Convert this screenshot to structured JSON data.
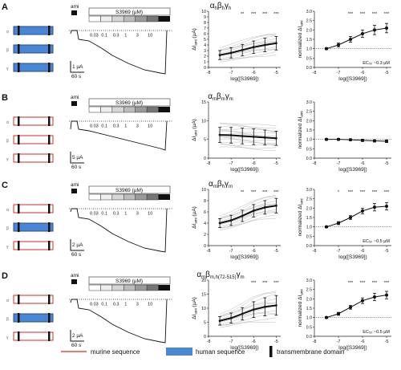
{
  "panels": [
    {
      "letter": "A",
      "title_main": "α",
      "title_sub1": "h",
      "title_b": "β",
      "title_sub2": "h",
      "title_g": "γ",
      "title_sub3": "h",
      "subunits": [
        "α",
        "β",
        "γ"
      ],
      "fills": [
        "human",
        "human",
        "human"
      ],
      "trace": {
        "ami": "ami",
        "drug": "S3969 (µM)",
        "concs": [
          "0.03",
          "0.1",
          "0.3",
          "1",
          "3",
          "10"
        ],
        "scale_current": "1 µA",
        "scale_time": "60 s"
      },
      "stars_mid": [
        "**",
        "***",
        "***",
        "***"
      ],
      "stars_right": [
        "***",
        "***",
        "***",
        "***"
      ],
      "ec50": "EC₅₀ ~0.3 µM"
    },
    {
      "letter": "B",
      "title_main": "α",
      "title_sub1": "m",
      "title_b": "β",
      "title_sub2": "m",
      "title_g": "γ",
      "title_sub3": "m",
      "subunits": [
        "α",
        "β",
        "γ"
      ],
      "fills": [
        "murine",
        "murine",
        "murine"
      ],
      "trace": {
        "ami": "ami",
        "drug": "S3969 (µM)",
        "concs": [
          "0.03",
          "0.1",
          "0.3",
          "1",
          "3",
          "10"
        ],
        "scale_current": "5 µA",
        "scale_time": "60 s"
      },
      "stars_mid": [],
      "stars_right": [],
      "ec50": ""
    },
    {
      "letter": "C",
      "title_main": "α",
      "title_sub1": "m",
      "title_b": "β",
      "title_sub2": "h",
      "title_g": "γ",
      "title_sub3": "m",
      "subunits": [
        "α",
        "β",
        "γ"
      ],
      "fills": [
        "murine",
        "human",
        "murine"
      ],
      "trace": {
        "ami": "ami",
        "drug": "S3969 (µM)",
        "concs": [
          "0.03",
          "0.1",
          "0.3",
          "1",
          "3",
          "10"
        ],
        "scale_current": "2 µA",
        "scale_time": "60 s"
      },
      "stars_mid": [
        "**",
        "***",
        "***",
        "***"
      ],
      "stars_right": [
        "*",
        "***",
        "***",
        "***",
        "***"
      ],
      "ec50": "EC₅₀ ~0.5 µM"
    },
    {
      "letter": "D",
      "title_main": "α",
      "title_sub1": "m",
      "title_b": "β",
      "title_sub2": "m,h(72-515)",
      "title_g": "γ",
      "title_sub3": "m",
      "subunits": [
        "α",
        "β",
        "γ"
      ],
      "fills": [
        "murine",
        "human",
        "murine"
      ],
      "trace": {
        "ami": "ami",
        "drug": "S3969 (µM)",
        "concs": [
          "0.03",
          "0.1",
          "0.3",
          "1",
          "3",
          "10"
        ],
        "scale_current": "2 µA",
        "scale_time": "60 s"
      },
      "stars_mid": [
        "***",
        "***",
        "***"
      ],
      "stars_right": [
        "***",
        "***",
        "***",
        "***"
      ],
      "ec50": "EC₅₀ ~0.5 µM"
    }
  ],
  "labels": {
    "mid_ylabel": "ΔI",
    "mid_ylabel_sub": "ami",
    "mid_ylabel_unit": " (µA)",
    "right_ylabel": "normalized ΔI",
    "right_ylabel_sub": "ami",
    "xlabel": "log([S3969])"
  },
  "legend": {
    "murine": "murine sequence",
    "human": "human sequence",
    "tm": "transmembrane domain"
  },
  "colors": {
    "murine": "#d42a2a",
    "human": "#4a86d6",
    "black": "#111111",
    "individual": "#bbbbbb"
  },
  "chart_data": [
    {
      "panel": "A",
      "type": "line",
      "kind": "absolute",
      "xlabel": "log([S3969])",
      "ylabel": "ΔIami (µA)",
      "x": [
        -7.5,
        -7,
        -6.5,
        -6,
        -5.5,
        -5
      ],
      "values": [
        2.2,
        2.6,
        3.1,
        3.6,
        4.0,
        4.3
      ],
      "err": [
        0.8,
        0.9,
        1.0,
        1.1,
        1.2,
        1.2
      ],
      "ylim": [
        0,
        10
      ],
      "yticks": [
        0,
        1,
        2,
        3,
        4,
        5,
        6,
        7,
        8,
        9,
        10
      ],
      "xlim": [
        -8,
        -4.8
      ],
      "xticks": [
        -8,
        -7,
        -6,
        -5
      ]
    },
    {
      "panel": "A",
      "type": "line",
      "kind": "normalized",
      "xlabel": "log([S3969])",
      "ylabel": "normalized ΔIami",
      "x": [
        -7.5,
        -7,
        -6.5,
        -6,
        -5.5,
        -5
      ],
      "values": [
        1.0,
        1.2,
        1.5,
        1.8,
        2.0,
        2.1
      ],
      "err": [
        0.05,
        0.1,
        0.15,
        0.2,
        0.25,
        0.25
      ],
      "ylim": [
        0,
        3
      ],
      "yticks": [
        0,
        0.5,
        1,
        1.5,
        2,
        2.5,
        3
      ],
      "xlim": [
        -8,
        -4.8
      ],
      "xticks": [
        -8,
        -7,
        -6,
        -5
      ],
      "reference": 1
    },
    {
      "panel": "B",
      "type": "line",
      "kind": "absolute",
      "xlabel": "log([S3969])",
      "ylabel": "ΔIami (µA)",
      "x": [
        -7.5,
        -7,
        -6.5,
        -6,
        -5.5,
        -5
      ],
      "values": [
        6.2,
        6.1,
        5.9,
        5.7,
        5.5,
        5.3
      ],
      "err": [
        2.0,
        2.1,
        2.1,
        2.1,
        2.0,
        1.9
      ],
      "ylim": [
        0,
        15
      ],
      "yticks": [
        0,
        5,
        10,
        15
      ],
      "xlim": [
        -8,
        -4.8
      ],
      "xticks": [
        -8,
        -7,
        -6,
        -5
      ]
    },
    {
      "panel": "B",
      "type": "line",
      "kind": "normalized",
      "xlabel": "log([S3969])",
      "ylabel": "normalized ΔIami",
      "x": [
        -7.5,
        -7,
        -6.5,
        -6,
        -5.5,
        -5
      ],
      "values": [
        1.0,
        1.0,
        0.98,
        0.95,
        0.92,
        0.9
      ],
      "err": [
        0.05,
        0.05,
        0.05,
        0.06,
        0.06,
        0.07
      ],
      "ylim": [
        0,
        3
      ],
      "yticks": [
        0,
        0.5,
        1,
        1.5,
        2,
        2.5,
        3
      ],
      "xlim": [
        -8,
        -4.8
      ],
      "xticks": [
        -8,
        -7,
        -6,
        -5
      ],
      "reference": 1
    },
    {
      "panel": "C",
      "type": "line",
      "kind": "absolute",
      "xlabel": "log([S3969])",
      "ylabel": "ΔIami (µA)",
      "x": [
        -7.5,
        -7,
        -6.5,
        -6,
        -5.5,
        -5
      ],
      "values": [
        4.0,
        4.5,
        5.3,
        6.2,
        6.8,
        7.1
      ],
      "err": [
        0.8,
        0.9,
        1.0,
        1.1,
        1.2,
        1.3
      ],
      "ylim": [
        0,
        10
      ],
      "yticks": [
        0,
        2,
        4,
        6,
        8,
        10
      ],
      "xlim": [
        -8,
        -4.8
      ],
      "xticks": [
        -8,
        -7,
        -6,
        -5
      ]
    },
    {
      "panel": "C",
      "type": "line",
      "kind": "normalized",
      "xlabel": "log([S3969])",
      "ylabel": "normalized ΔIami",
      "x": [
        -7.5,
        -7,
        -6.5,
        -6,
        -5.5,
        -5
      ],
      "values": [
        1.0,
        1.2,
        1.5,
        1.85,
        2.05,
        2.1
      ],
      "err": [
        0.05,
        0.08,
        0.1,
        0.15,
        0.2,
        0.2
      ],
      "ylim": [
        0,
        3
      ],
      "yticks": [
        0,
        0.5,
        1,
        1.5,
        2,
        2.5,
        3
      ],
      "xlim": [
        -8,
        -4.8
      ],
      "xticks": [
        -8,
        -7,
        -6,
        -5
      ],
      "reference": 1
    },
    {
      "panel": "D",
      "type": "line",
      "kind": "absolute",
      "xlabel": "log([S3969])",
      "ylabel": "ΔIami (µA)",
      "x": [
        -7.5,
        -7,
        -6.5,
        -6,
        -5.5,
        -5
      ],
      "values": [
        5.5,
        6.5,
        8.0,
        9.5,
        10.5,
        11.0
      ],
      "err": [
        1.5,
        1.8,
        2.2,
        2.8,
        3.2,
        3.5
      ],
      "ylim": [
        0,
        20
      ],
      "yticks": [
        0,
        5,
        10,
        15,
        20
      ],
      "xlim": [
        -8,
        -4.8
      ],
      "xticks": [
        -8,
        -7,
        -6,
        -5
      ]
    },
    {
      "panel": "D",
      "type": "line",
      "kind": "normalized",
      "xlabel": "log([S3969])",
      "ylabel": "normalized ΔIami",
      "x": [
        -7.5,
        -7,
        -6.5,
        -6,
        -5.5,
        -5
      ],
      "values": [
        1.0,
        1.2,
        1.55,
        1.9,
        2.1,
        2.2
      ],
      "err": [
        0.05,
        0.08,
        0.1,
        0.15,
        0.2,
        0.2
      ],
      "ylim": [
        0,
        3
      ],
      "yticks": [
        0,
        0.5,
        1,
        1.5,
        2,
        2.5,
        3
      ],
      "xlim": [
        -8,
        -4.8
      ],
      "xticks": [
        -8,
        -7,
        -6,
        -5
      ],
      "reference": 1
    }
  ]
}
